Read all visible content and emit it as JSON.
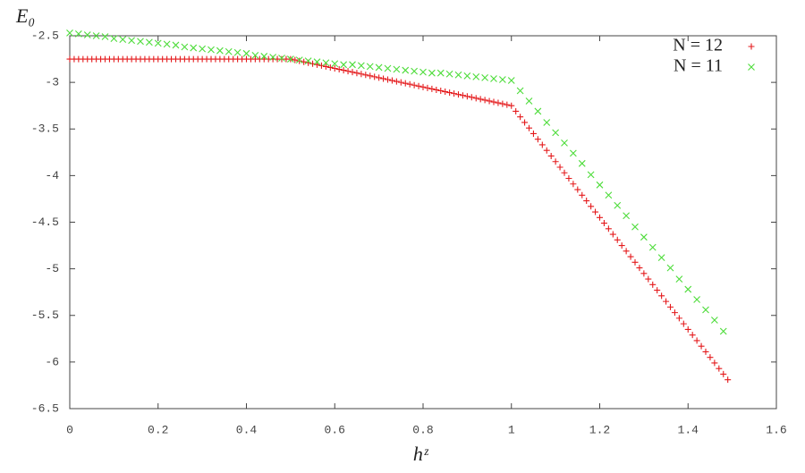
{
  "chart_data": {
    "type": "scatter",
    "x_label": "hᶻ",
    "y_label": "E₀",
    "xlim": [
      0,
      1.6
    ],
    "xticks": [
      0,
      0.2,
      0.4,
      0.6,
      0.8,
      1,
      1.2,
      1.4,
      1.6
    ],
    "ylim": [
      -6.5,
      -2.5
    ],
    "yticks": [
      -2.5,
      -3,
      -3.5,
      -4,
      -4.5,
      -5,
      -5.5,
      -6,
      -6.5
    ],
    "legend": "top-right",
    "series": [
      {
        "name": "N = 12",
        "color": "#e41a1c",
        "marker": "plus",
        "x": [
          0,
          0.01,
          0.02,
          0.03,
          0.04,
          0.05,
          0.06,
          0.07,
          0.08,
          0.09,
          0.1,
          0.11,
          0.12,
          0.13,
          0.14,
          0.15,
          0.16,
          0.17,
          0.18,
          0.19,
          0.2,
          0.21,
          0.22,
          0.23,
          0.24,
          0.25,
          0.26,
          0.27,
          0.28,
          0.29,
          0.3,
          0.31,
          0.32,
          0.33,
          0.34,
          0.35,
          0.36,
          0.37,
          0.38,
          0.39,
          0.4,
          0.41,
          0.42,
          0.43,
          0.44,
          0.45,
          0.46,
          0.47,
          0.48,
          0.49,
          0.5,
          0.51,
          0.52,
          0.53,
          0.54,
          0.55,
          0.56,
          0.57,
          0.58,
          0.59,
          0.6,
          0.61,
          0.62,
          0.63,
          0.64,
          0.65,
          0.66,
          0.67,
          0.68,
          0.69,
          0.7,
          0.71,
          0.72,
          0.73,
          0.74,
          0.75,
          0.76,
          0.77,
          0.78,
          0.79,
          0.8,
          0.81,
          0.82,
          0.83,
          0.84,
          0.85,
          0.86,
          0.87,
          0.88,
          0.89,
          0.9,
          0.91,
          0.92,
          0.93,
          0.94,
          0.95,
          0.96,
          0.97,
          0.98,
          0.99,
          1,
          1.01,
          1.02,
          1.03,
          1.04,
          1.05,
          1.06,
          1.07,
          1.08,
          1.09,
          1.1,
          1.11,
          1.12,
          1.13,
          1.14,
          1.15,
          1.16,
          1.17,
          1.18,
          1.19,
          1.2,
          1.21,
          1.22,
          1.23,
          1.24,
          1.25,
          1.26,
          1.27,
          1.28,
          1.29,
          1.3,
          1.31,
          1.32,
          1.33,
          1.34,
          1.35,
          1.36,
          1.37,
          1.38,
          1.39,
          1.4,
          1.41,
          1.42,
          1.43,
          1.44,
          1.45,
          1.46,
          1.47,
          1.48,
          1.49
        ],
        "values": [
          -2.75,
          -2.75,
          -2.75,
          -2.75,
          -2.75,
          -2.75,
          -2.75,
          -2.75,
          -2.75,
          -2.75,
          -2.75,
          -2.75,
          -2.75,
          -2.75,
          -2.75,
          -2.75,
          -2.75,
          -2.75,
          -2.75,
          -2.75,
          -2.75,
          -2.75,
          -2.75,
          -2.75,
          -2.75,
          -2.75,
          -2.75,
          -2.75,
          -2.75,
          -2.75,
          -2.75,
          -2.75,
          -2.75,
          -2.75,
          -2.75,
          -2.75,
          -2.75,
          -2.75,
          -2.75,
          -2.75,
          -2.75,
          -2.75,
          -2.75,
          -2.75,
          -2.75,
          -2.75,
          -2.75,
          -2.75,
          -2.75,
          -2.75,
          -2.75,
          -2.76,
          -2.77,
          -2.78,
          -2.79,
          -2.8,
          -2.81,
          -2.82,
          -2.83,
          -2.84,
          -2.85,
          -2.86,
          -2.87,
          -2.88,
          -2.89,
          -2.9,
          -2.91,
          -2.92,
          -2.93,
          -2.94,
          -2.95,
          -2.96,
          -2.97,
          -2.98,
          -2.99,
          -3,
          -3.01,
          -3.02,
          -3.03,
          -3.04,
          -3.05,
          -3.06,
          -3.07,
          -3.08,
          -3.09,
          -3.1,
          -3.11,
          -3.12,
          -3.13,
          -3.14,
          -3.15,
          -3.16,
          -3.17,
          -3.18,
          -3.19,
          -3.2,
          -3.21,
          -3.22,
          -3.23,
          -3.24,
          -3.25,
          -3.31,
          -3.37,
          -3.43,
          -3.49,
          -3.55,
          -3.61,
          -3.67,
          -3.73,
          -3.79,
          -3.85,
          -3.91,
          -3.97,
          -4.03,
          -4.09,
          -4.15,
          -4.21,
          -4.27,
          -4.33,
          -4.39,
          -4.45,
          -4.51,
          -4.57,
          -4.63,
          -4.69,
          -4.75,
          -4.81,
          -4.87,
          -4.93,
          -4.99,
          -5.05,
          -5.11,
          -5.17,
          -5.23,
          -5.29,
          -5.35,
          -5.41,
          -5.47,
          -5.53,
          -5.59,
          -5.65,
          -5.71,
          -5.77,
          -5.83,
          -5.89,
          -5.95,
          -6.01,
          -6.07,
          -6.13,
          -6.19
        ]
      },
      {
        "name": "N = 11",
        "color": "#4ddc3a",
        "marker": "cross",
        "x": [
          0,
          0.02,
          0.04,
          0.06,
          0.08,
          0.1,
          0.12,
          0.14,
          0.16,
          0.18,
          0.2,
          0.22,
          0.24,
          0.26,
          0.28,
          0.3,
          0.32,
          0.34,
          0.36,
          0.38,
          0.4,
          0.42,
          0.44,
          0.46,
          0.48,
          0.5,
          0.52,
          0.54,
          0.56,
          0.58,
          0.6,
          0.62,
          0.64,
          0.66,
          0.68,
          0.7,
          0.72,
          0.74,
          0.76,
          0.78,
          0.8,
          0.82,
          0.84,
          0.86,
          0.88,
          0.9,
          0.92,
          0.94,
          0.96,
          0.98,
          1,
          1.02,
          1.04,
          1.06,
          1.08,
          1.1,
          1.12,
          1.14,
          1.16,
          1.18,
          1.2,
          1.22,
          1.24,
          1.26,
          1.28,
          1.3,
          1.32,
          1.34,
          1.36,
          1.38,
          1.4,
          1.42,
          1.44,
          1.46,
          1.48
        ],
        "values": [
          -2.47,
          -2.48,
          -2.49,
          -2.5,
          -2.51,
          -2.53,
          -2.54,
          -2.55,
          -2.56,
          -2.57,
          -2.58,
          -2.59,
          -2.6,
          -2.62,
          -2.63,
          -2.64,
          -2.65,
          -2.66,
          -2.67,
          -2.68,
          -2.69,
          -2.71,
          -2.72,
          -2.73,
          -2.74,
          -2.75,
          -2.76,
          -2.77,
          -2.78,
          -2.79,
          -2.8,
          -2.81,
          -2.81,
          -2.82,
          -2.83,
          -2.84,
          -2.85,
          -2.86,
          -2.87,
          -2.88,
          -2.89,
          -2.9,
          -2.9,
          -2.91,
          -2.92,
          -2.93,
          -2.94,
          -2.95,
          -2.96,
          -2.97,
          -2.98,
          -3.09,
          -3.2,
          -3.31,
          -3.43,
          -3.54,
          -3.65,
          -3.76,
          -3.87,
          -3.99,
          -4.1,
          -4.21,
          -4.32,
          -4.43,
          -4.55,
          -4.66,
          -4.77,
          -4.88,
          -4.99,
          -5.11,
          -5.22,
          -5.33,
          -5.44,
          -5.55,
          -5.67
        ]
      }
    ]
  }
}
